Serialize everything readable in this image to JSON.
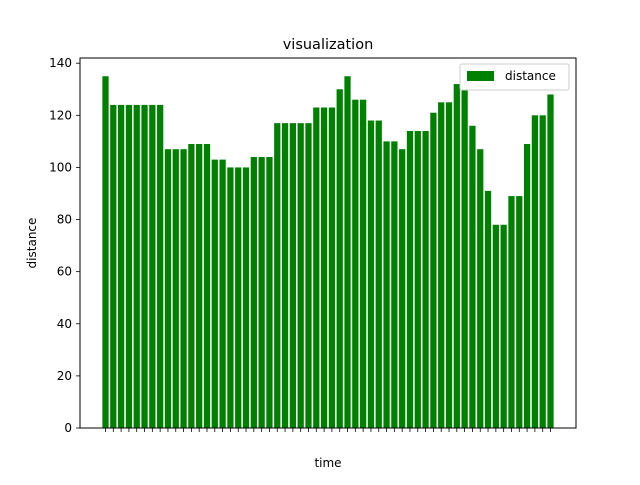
{
  "chart_data": {
    "type": "bar",
    "title": "visualization",
    "xlabel": "time",
    "ylabel": "distance",
    "ylim": [
      0,
      142
    ],
    "yticks": [
      0,
      20,
      40,
      60,
      80,
      100,
      120,
      140
    ],
    "grid": false,
    "legend_position": "top-right",
    "series": [
      {
        "name": "distance",
        "color": "#008000",
        "values": [
          135,
          124,
          124,
          124,
          124,
          124,
          124,
          124,
          107,
          107,
          107,
          109,
          109,
          109,
          103,
          103,
          100,
          100,
          100,
          104,
          104,
          104,
          117,
          117,
          117,
          117,
          117,
          123,
          123,
          123,
          130,
          135,
          126,
          126,
          118,
          118,
          110,
          110,
          107,
          114,
          114,
          114,
          121,
          125,
          125,
          132,
          130,
          116,
          107,
          91,
          78,
          78,
          89,
          89,
          109,
          120,
          120,
          128
        ]
      }
    ]
  }
}
